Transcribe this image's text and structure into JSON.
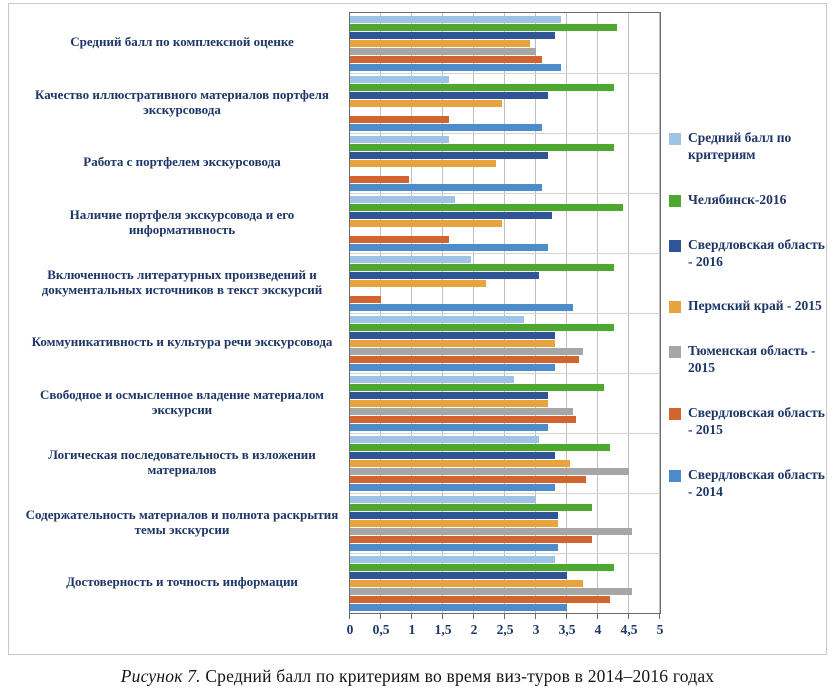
{
  "figure": {
    "caption_label": "Рисунок 7.",
    "caption_text": "Средний балл по критериям во время виз-туров в 2014–2016 годах"
  },
  "chart_data": {
    "type": "bar",
    "orientation": "horizontal",
    "title": "",
    "xlabel": "",
    "ylabel": "",
    "xlim": [
      0,
      5
    ],
    "x_ticks": [
      "0",
      "0,5",
      "1",
      "1,5",
      "2",
      "2,5",
      "3",
      "3,5",
      "4",
      "4,5",
      "5"
    ],
    "grid": true,
    "legend_position": "right",
    "categories": [
      "Средний балл по комплексной оценке",
      "Качество иллюстративного материалов портфеля экскурсовода",
      "Работа с портфелем экскурсовода",
      "Наличие портфеля экскурсовода и его информативность",
      "Включенность литературных произведений и документальных источников в текст экскурсий",
      "Коммуникативность и культура речи экскурсовода",
      "Свободное и осмысленное владение материалом экскурсии",
      "Логическая последовательность в изложении материалов",
      "Содержательность материалов и полнота раскрытия темы экскурсии",
      "Достоверность и точность информации"
    ],
    "series": [
      {
        "name": "Средний балл по критериям",
        "color": "#9DC3E6",
        "values": [
          3.4,
          1.6,
          1.6,
          1.7,
          1.95,
          2.8,
          2.65,
          3.05,
          3.0,
          3.3
        ]
      },
      {
        "name": "Челябинск-2016",
        "color": "#4EA72E",
        "values": [
          4.3,
          4.25,
          4.25,
          4.4,
          4.25,
          4.25,
          4.1,
          4.2,
          3.9,
          4.25
        ]
      },
      {
        "name": "Свердловская область - 2016",
        "color": "#2F5597",
        "values": [
          3.3,
          3.2,
          3.2,
          3.25,
          3.05,
          3.3,
          3.2,
          3.3,
          3.35,
          3.5
        ]
      },
      {
        "name": "Пермский край - 2015",
        "color": "#E8A33D",
        "values": [
          2.9,
          2.45,
          2.35,
          2.45,
          2.2,
          3.3,
          3.2,
          3.55,
          3.35,
          3.75
        ]
      },
      {
        "name": "Тюменская область - 2015",
        "color": "#A6A6A6",
        "values": [
          3.0,
          0,
          0,
          0,
          0,
          3.75,
          3.6,
          4.5,
          4.55,
          4.55
        ]
      },
      {
        "name": "Свердловская область - 2015",
        "color": "#D2652F",
        "values": [
          3.1,
          1.6,
          0.95,
          1.6,
          0.5,
          3.7,
          3.65,
          3.8,
          3.9,
          4.2
        ]
      },
      {
        "name": "Свердловская область - 2014",
        "color": "#4D8CCA",
        "values": [
          3.4,
          3.1,
          3.1,
          3.2,
          3.6,
          3.3,
          3.2,
          3.3,
          3.35,
          3.5
        ]
      }
    ]
  }
}
